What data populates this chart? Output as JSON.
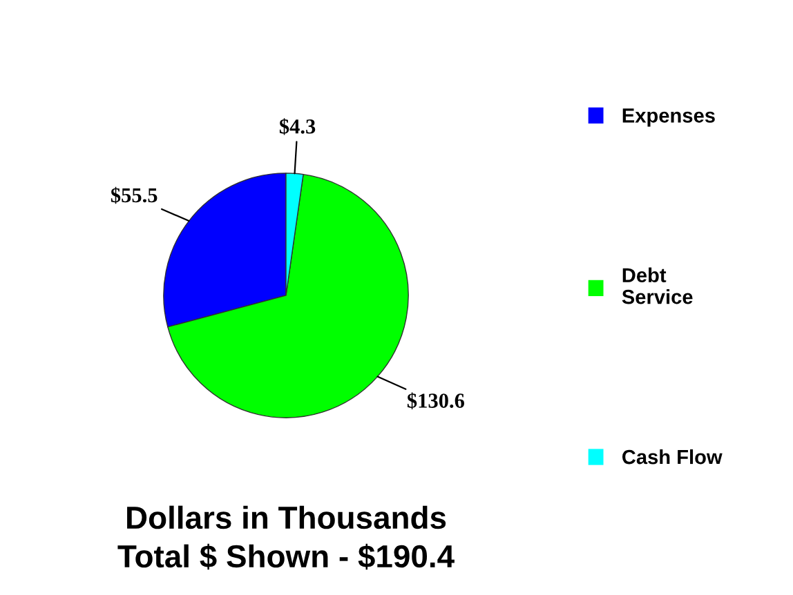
{
  "chart_data": {
    "type": "pie",
    "categories": [
      "Expenses",
      "Debt\nService",
      "Cash Flow"
    ],
    "values": [
      55.5,
      130.6,
      4.3
    ],
    "colors": [
      "#0000ff",
      "#00ff00",
      "#00ffff"
    ],
    "value_labels": [
      "$55.5",
      "$130.6",
      "$4.3"
    ],
    "legend": "right",
    "annotations": [
      "Dollars in Thousands",
      "Total $ Shown - $190.4"
    ]
  }
}
